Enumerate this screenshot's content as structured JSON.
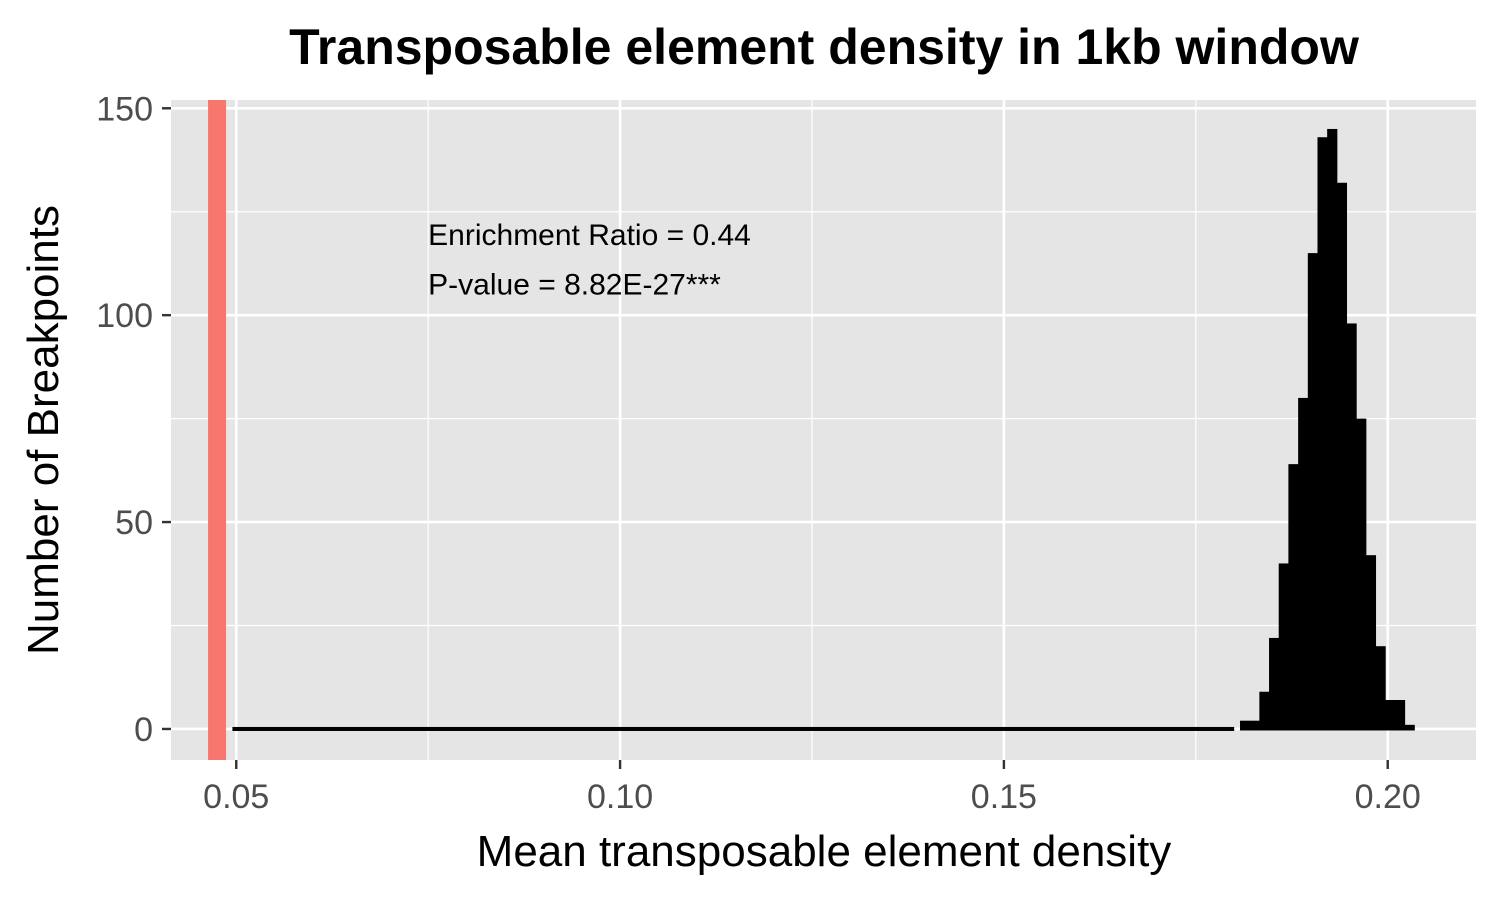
{
  "chart_data": {
    "type": "bar",
    "subtype": "histogram",
    "title": "Transposable element density in 1kb window",
    "xlabel": "Mean transposable element density",
    "ylabel": "Number of Breakpoints",
    "xlim": [
      0.0415,
      0.2115
    ],
    "ylim": [
      -7.5,
      152
    ],
    "xticks": [
      0.05,
      0.1,
      0.15,
      0.2
    ],
    "xtick_labels": [
      "0.05",
      "0.10",
      "0.15",
      "0.20"
    ],
    "yticks": [
      0,
      50,
      100,
      150
    ],
    "ytick_labels": [
      "0",
      "50",
      "100",
      "150"
    ],
    "grid": true,
    "panel_background": "#e5e5e5",
    "bar_color": "#000000",
    "bin_width": 0.00125,
    "bins": [
      {
        "x": 0.18076,
        "count": 2
      },
      {
        "x": 0.18202,
        "count": 2
      },
      {
        "x": 0.18328,
        "count": 9
      },
      {
        "x": 0.18454,
        "count": 22
      },
      {
        "x": 0.1858,
        "count": 40
      },
      {
        "x": 0.18706,
        "count": 64
      },
      {
        "x": 0.18833,
        "count": 80
      },
      {
        "x": 0.18959,
        "count": 115
      },
      {
        "x": 0.19085,
        "count": 143
      },
      {
        "x": 0.19211,
        "count": 145
      },
      {
        "x": 0.19337,
        "count": 132
      },
      {
        "x": 0.19463,
        "count": 98
      },
      {
        "x": 0.19589,
        "count": 75
      },
      {
        "x": 0.19715,
        "count": 42
      },
      {
        "x": 0.19841,
        "count": 20
      },
      {
        "x": 0.19967,
        "count": 7
      },
      {
        "x": 0.20094,
        "count": 7
      },
      {
        "x": 0.2022,
        "count": 1
      }
    ],
    "baseline_range": [
      0.0495,
      0.18
    ],
    "observed_line": {
      "x": 0.0475,
      "color": "#f8766d"
    },
    "annotations": [
      {
        "text": "Enrichment Ratio = 0.44",
        "x": 0.075,
        "y": 117
      },
      {
        "text": "P-value = 8.82E-27***",
        "x": 0.075,
        "y": 105
      }
    ]
  }
}
